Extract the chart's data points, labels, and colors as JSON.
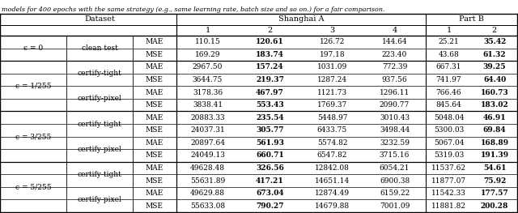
{
  "title_text": "models for 400 epochs with the same strategy (e.g., same learning rate, batch size and so on.) for a fair comparison.",
  "rows": [
    {
      "metric": "MAE",
      "vals": [
        "110.15",
        "120.61",
        "126.72",
        "144.64",
        "25.21",
        "35.42"
      ],
      "bold": [
        1,
        5
      ]
    },
    {
      "metric": "MSE",
      "vals": [
        "169.29",
        "183.74",
        "197.18",
        "223.40",
        "43.68",
        "61.32"
      ],
      "bold": [
        1,
        5
      ]
    },
    {
      "metric": "MAE",
      "vals": [
        "2967.50",
        "157.24",
        "1031.09",
        "772.39",
        "667.31",
        "39.25"
      ],
      "bold": [
        1,
        5
      ]
    },
    {
      "metric": "MSE",
      "vals": [
        "3644.75",
        "219.37",
        "1287.24",
        "937.56",
        "741.97",
        "64.40"
      ],
      "bold": [
        1,
        5
      ]
    },
    {
      "metric": "MAE",
      "vals": [
        "3178.36",
        "467.97",
        "1121.73",
        "1296.11",
        "766.46",
        "160.73"
      ],
      "bold": [
        1,
        5
      ]
    },
    {
      "metric": "MSE",
      "vals": [
        "3838.41",
        "553.43",
        "1769.37",
        "2090.77",
        "845.64",
        "183.02"
      ],
      "bold": [
        1,
        5
      ]
    },
    {
      "metric": "MAE",
      "vals": [
        "20883.33",
        "235.54",
        "5448.97",
        "3010.43",
        "5048.04",
        "46.91"
      ],
      "bold": [
        1,
        5
      ]
    },
    {
      "metric": "MSE",
      "vals": [
        "24037.31",
        "305.77",
        "6433.75",
        "3498.44",
        "5300.03",
        "69.84"
      ],
      "bold": [
        1,
        5
      ]
    },
    {
      "metric": "MAE",
      "vals": [
        "20897.64",
        "561.93",
        "5574.82",
        "3232.59",
        "5067.04",
        "168.89"
      ],
      "bold": [
        1,
        5
      ]
    },
    {
      "metric": "MSE",
      "vals": [
        "24049.13",
        "660.71",
        "6547.82",
        "3715.16",
        "5319.03",
        "191.39"
      ],
      "bold": [
        1,
        5
      ]
    },
    {
      "metric": "MAE",
      "vals": [
        "49628.48",
        "326.56",
        "12842.08",
        "6054.21",
        "11537.62",
        "54.61"
      ],
      "bold": [
        1,
        5
      ]
    },
    {
      "metric": "MSE",
      "vals": [
        "55631.89",
        "417.21",
        "14651.14",
        "6900.38",
        "11877.07",
        "75.92"
      ],
      "bold": [
        1,
        5
      ]
    },
    {
      "metric": "MAE",
      "vals": [
        "49629.88",
        "673.04",
        "12874.49",
        "6159.22",
        "11542.33",
        "177.57"
      ],
      "bold": [
        1,
        5
      ]
    },
    {
      "metric": "MSE",
      "vals": [
        "55633.08",
        "790.27",
        "14679.88",
        "7001.09",
        "11881.82",
        "200.28"
      ],
      "bold": [
        1,
        5
      ]
    }
  ],
  "epsilon_spans": [
    [
      0,
      1,
      "ϵ = 0"
    ],
    [
      2,
      5,
      "ϵ = 1/255"
    ],
    [
      6,
      9,
      "ϵ = 3/255"
    ],
    [
      10,
      13,
      "ϵ = 5/255"
    ]
  ],
  "method_spans": [
    [
      0,
      1,
      "clean test"
    ],
    [
      2,
      3,
      "certify-tight"
    ],
    [
      4,
      5,
      "certify-pixel"
    ],
    [
      6,
      7,
      "certify-tight"
    ],
    [
      8,
      9,
      "certify-pixel"
    ],
    [
      10,
      11,
      "certify-tight"
    ],
    [
      12,
      13,
      "certify-pixel"
    ]
  ]
}
